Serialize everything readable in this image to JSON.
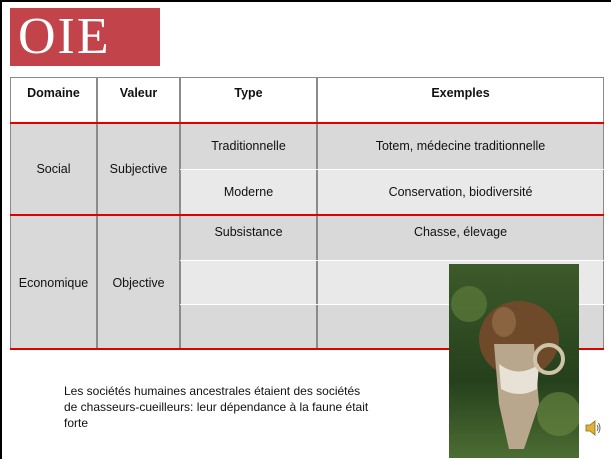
{
  "logo": "OIE",
  "table": {
    "header": [
      "Domaine",
      "Valeur",
      "Type",
      "Exemples"
    ],
    "groups": [
      {
        "domaine": "Social",
        "valeur": "Subjective",
        "rows": [
          [
            "Traditionnelle",
            "Totem, médecine traditionnelle"
          ],
          [
            "Moderne",
            "Conservation, biodiversité"
          ]
        ]
      },
      {
        "domaine": "Economique",
        "valeur": "Objective",
        "rows": [
          [
            "Subsistance",
            "Chasse, élevage"
          ]
        ]
      }
    ]
  },
  "caption": "Les sociétés humaines ancestrales étaient des sociétés de chasseurs-cueilleurs: leur dépendance à la faune était forte"
}
